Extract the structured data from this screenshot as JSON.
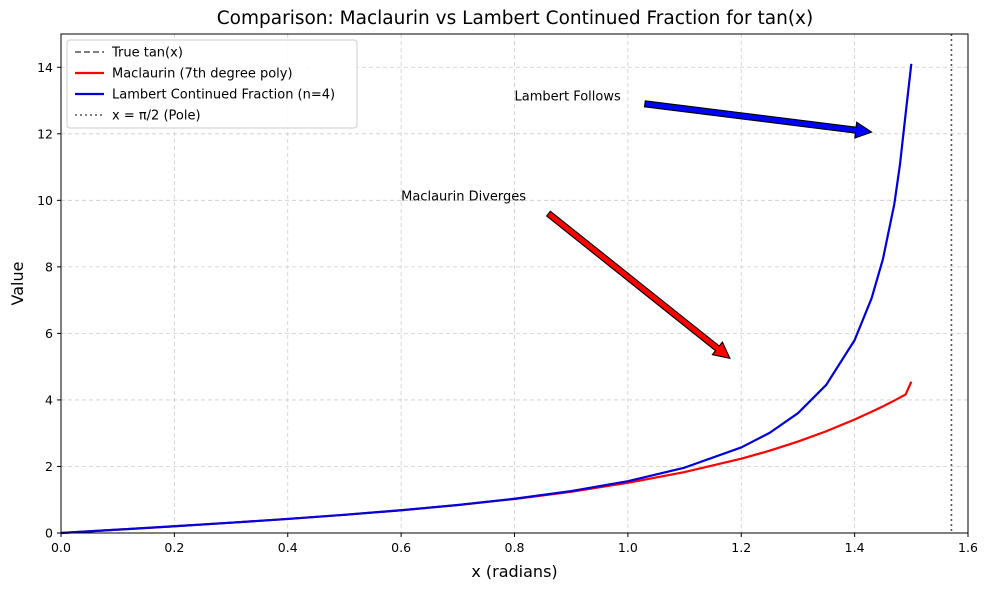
{
  "chart_data": {
    "type": "line",
    "title": "Comparison: Maclaurin vs Lambert Continued Fraction for tan(x)",
    "xlabel": "x (radians)",
    "ylabel": "Value",
    "xlim": [
      0,
      1.6
    ],
    "ylim": [
      0,
      15
    ],
    "x_ticks": [
      "0.0",
      "0.2",
      "0.4",
      "0.6",
      "0.8",
      "1.0",
      "1.2",
      "1.4",
      "1.6"
    ],
    "y_ticks": [
      "0",
      "2",
      "4",
      "6",
      "8",
      "10",
      "12",
      "14"
    ],
    "grid": true,
    "legend_position": "top-left",
    "series": [
      {
        "name": "True tan(x)",
        "color": "#555555",
        "style": "dashed",
        "x": [
          0,
          0.1,
          0.2,
          0.3,
          0.4,
          0.5,
          0.6,
          0.7,
          0.8,
          0.9,
          1.0,
          1.1,
          1.2,
          1.25,
          1.3,
          1.35,
          1.4,
          1.43,
          1.45,
          1.47,
          1.48,
          1.49,
          1.5
        ],
        "values": [
          0,
          0.1003,
          0.2027,
          0.3093,
          0.4228,
          0.5463,
          0.6841,
          0.8423,
          1.0296,
          1.2602,
          1.5574,
          1.9648,
          2.5722,
          3.0096,
          3.6021,
          4.4552,
          5.7979,
          7.0579,
          8.238,
          9.8874,
          11.0765,
          12.6014,
          14.1014
        ]
      },
      {
        "name": "Maclaurin (7th degree poly)",
        "color": "#ff0000",
        "style": "solid",
        "x": [
          0,
          0.1,
          0.2,
          0.3,
          0.4,
          0.5,
          0.6,
          0.7,
          0.8,
          0.9,
          1.0,
          1.1,
          1.2,
          1.25,
          1.3,
          1.35,
          1.4,
          1.43,
          1.45,
          1.47,
          1.48,
          1.49,
          1.5
        ],
        "values": [
          0,
          0.1003,
          0.2027,
          0.3093,
          0.4228,
          0.5462,
          0.6836,
          0.8401,
          1.0223,
          1.2388,
          1.5079,
          1.8308,
          2.2328,
          2.4745,
          2.7479,
          3.0586,
          3.4106,
          3.6438,
          3.8076,
          3.9812,
          4.0718,
          4.165,
          4.5491
        ]
      },
      {
        "name": "Lambert Continued Fraction (n=4)",
        "color": "#0000dd",
        "style": "solid",
        "x": [
          0,
          0.1,
          0.2,
          0.3,
          0.4,
          0.5,
          0.6,
          0.7,
          0.8,
          0.9,
          1.0,
          1.1,
          1.2,
          1.25,
          1.3,
          1.35,
          1.4,
          1.43,
          1.45,
          1.47,
          1.48,
          1.49,
          1.5
        ],
        "values": [
          0,
          0.1003,
          0.2027,
          0.3093,
          0.4228,
          0.5463,
          0.6841,
          0.8423,
          1.0296,
          1.2602,
          1.5574,
          1.9648,
          2.5722,
          3.0096,
          3.6021,
          4.4552,
          5.7979,
          7.0579,
          8.238,
          9.8874,
          11.0765,
          12.6014,
          14.1014
        ]
      },
      {
        "name": "x = π/2 (Pole)",
        "color": "#555555",
        "style": "dotted",
        "vertical_x": 1.5708
      }
    ],
    "annotations": [
      {
        "text": "Lambert Follows",
        "text_at": [
          0.8,
          13.0
        ],
        "arrow_from": [
          1.03,
          12.9
        ],
        "arrow_to": [
          1.43,
          12.05
        ],
        "arrow_color": "#0000ff"
      },
      {
        "text": "Maclaurin Diverges",
        "text_at": [
          0.6,
          10.0
        ],
        "arrow_from": [
          0.86,
          9.6
        ],
        "arrow_to": [
          1.18,
          5.25
        ],
        "arrow_color": "#ff0000"
      }
    ]
  }
}
